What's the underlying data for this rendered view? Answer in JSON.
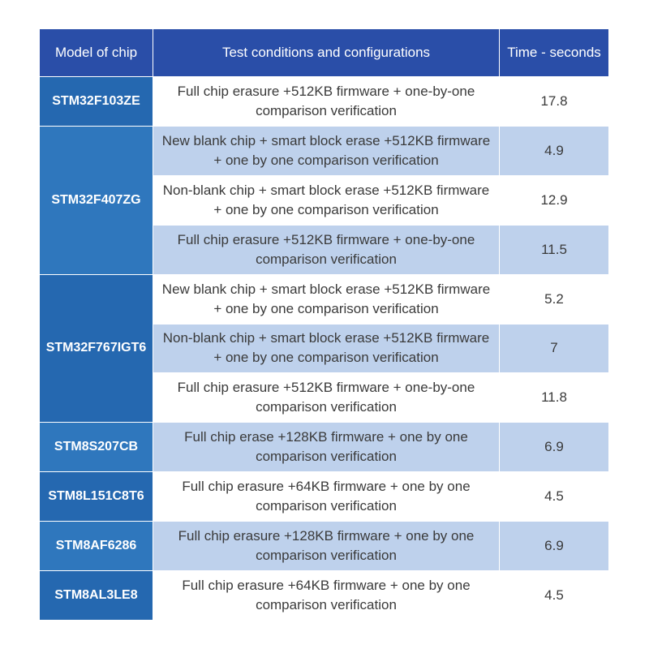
{
  "header": {
    "model": "Model of chip",
    "conditions": "Test conditions and configurations",
    "time": "Time - seconds"
  },
  "groups": [
    {
      "model": "STM32F103ZE",
      "rows": [
        {
          "condition": "Full chip erasure +512KB firmware + one-by-one comparison verification",
          "time": "17.8"
        }
      ]
    },
    {
      "model": "STM32F407ZG",
      "rows": [
        {
          "condition": "New blank chip + smart block erase +512KB firmware + one by one comparison verification",
          "time": "4.9"
        },
        {
          "condition": "Non-blank chip + smart block erase +512KB firmware + one by one comparison verification",
          "time": "12.9"
        },
        {
          "condition": "Full chip erasure +512KB firmware + one-by-one comparison verification",
          "time": "11.5"
        }
      ]
    },
    {
      "model": "STM32F767IGT6",
      "rows": [
        {
          "condition": "New blank chip + smart block erase +512KB firmware + one by one comparison verification",
          "time": "5.2"
        },
        {
          "condition": "Non-blank chip + smart block erase +512KB firmware + one by one comparison verification",
          "time": "7"
        },
        {
          "condition": "Full chip erasure +512KB firmware + one-by-one comparison verification",
          "time": "11.8"
        }
      ]
    },
    {
      "model": "STM8S207CB",
      "rows": [
        {
          "condition": "Full chip erase +128KB firmware + one by one comparison verification",
          "time": "6.9"
        }
      ]
    },
    {
      "model": "STM8L151C8T6",
      "rows": [
        {
          "condition": "Full chip erasure +64KB firmware + one by one comparison verification",
          "time": "4.5"
        }
      ]
    },
    {
      "model": "STM8AF6286",
      "rows": [
        {
          "condition": "Full chip erasure +128KB firmware + one by one comparison verification",
          "time": "6.9"
        }
      ]
    },
    {
      "model": "STM8AL3LE8",
      "rows": [
        {
          "condition": "Full chip erasure +64KB firmware + one by one comparison verification",
          "time": "4.5"
        }
      ]
    }
  ],
  "colors": {
    "header_bg": "#2a4ea8",
    "model_bg": "#2568b0",
    "row_light": "#ffffff",
    "row_tint": "#bed1ec",
    "text_dark": "#3a3a3a"
  }
}
